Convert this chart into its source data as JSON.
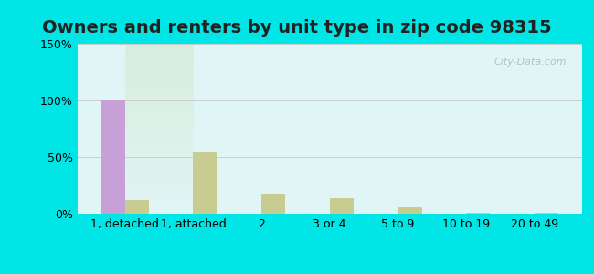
{
  "title": "Owners and renters by unit type in zip code 98315",
  "categories": [
    "1, detached",
    "1, attached",
    "2",
    "3 or 4",
    "5 to 9",
    "10 to 19",
    "20 to 49"
  ],
  "owner_values": [
    100,
    0,
    0,
    0,
    0,
    0,
    0
  ],
  "renter_values": [
    12,
    55,
    18,
    14,
    6,
    0.5,
    0.5
  ],
  "owner_color": "#c8a0d8",
  "renter_color": "#c8cc90",
  "ylim": [
    0,
    150
  ],
  "yticks": [
    0,
    50,
    100,
    150
  ],
  "ytick_labels": [
    "0%",
    "50%",
    "100%",
    "150%"
  ],
  "bar_width": 0.35,
  "background_top": "#e0f5f5",
  "background_bottom": "#d8eedd",
  "watermark": "City-Data.com",
  "outer_bg": "#00e5e5",
  "grid_color": "#cccccc",
  "title_fontsize": 14,
  "axis_fontsize": 9
}
